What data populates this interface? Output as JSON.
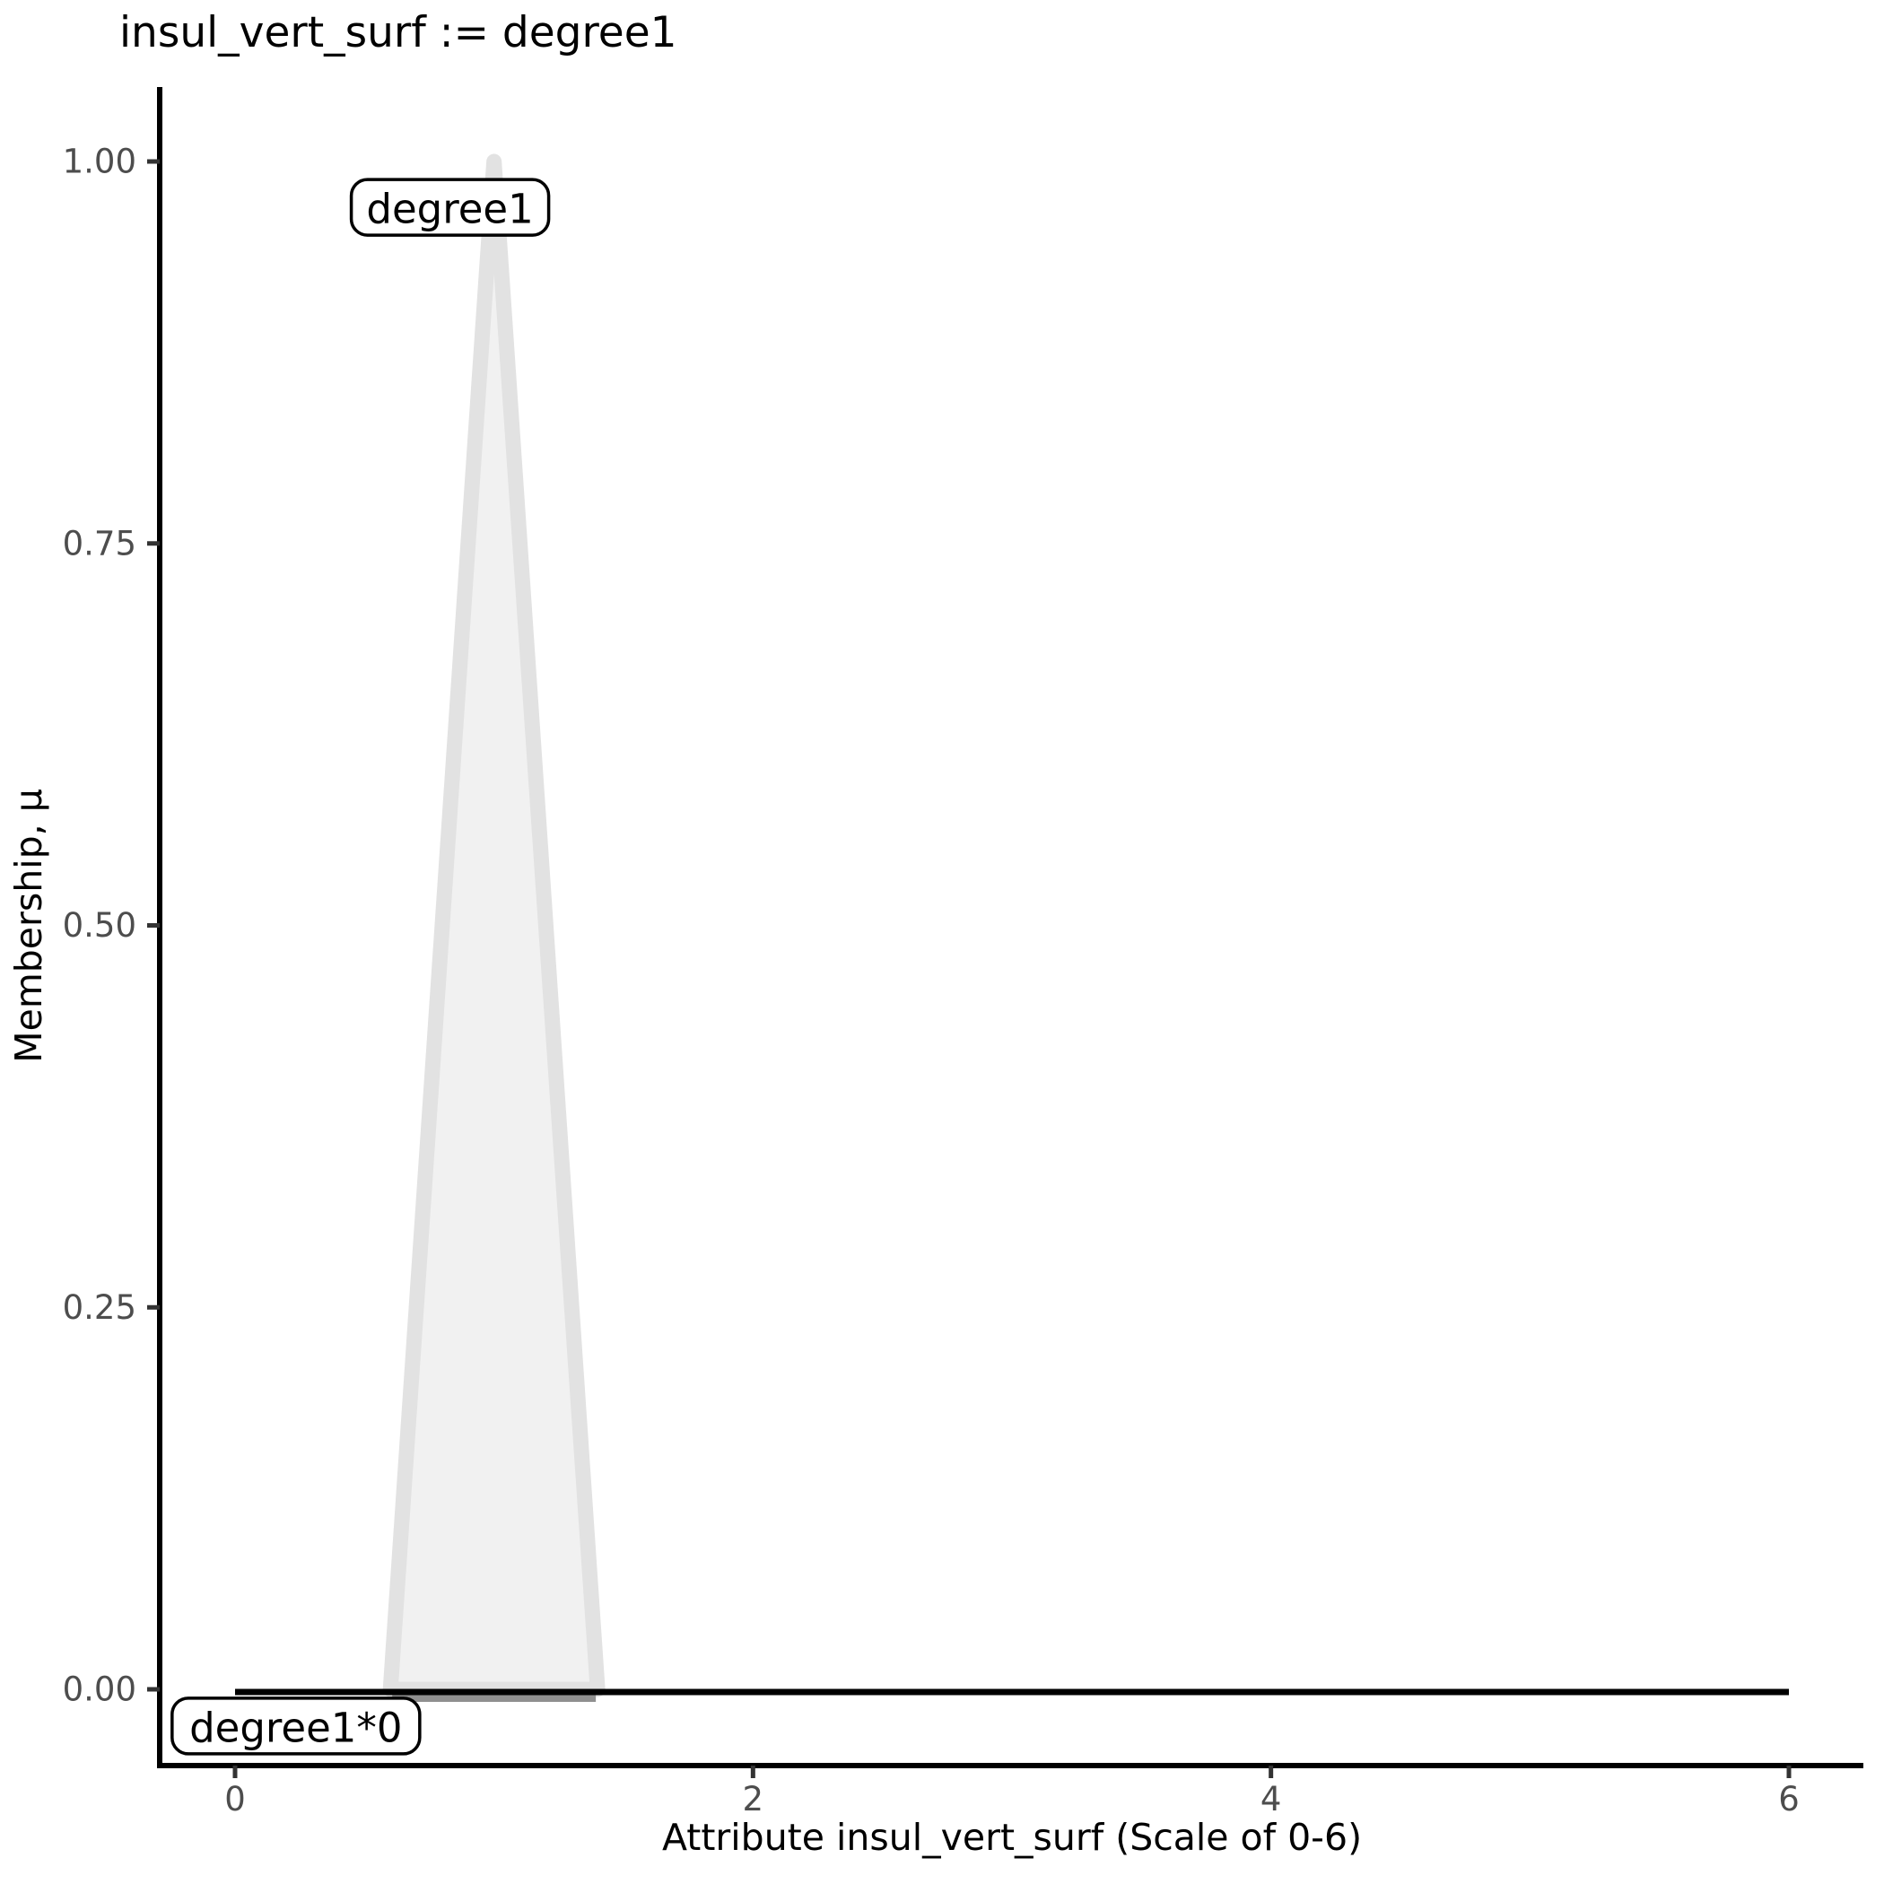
{
  "title": "insul_vert_surf := degree1",
  "axes": {
    "x": {
      "label": "Attribute insul_vert_surf (Scale of 0-6)",
      "ticks": [
        "0",
        "2",
        "4",
        "6"
      ],
      "tick_values": [
        0,
        2,
        4,
        6
      ],
      "range": [
        0,
        6
      ]
    },
    "y": {
      "label": "Membership, μ",
      "ticks": [
        "1.00",
        "0.75",
        "0.50",
        "0.25",
        "0.00"
      ],
      "tick_values": [
        1.0,
        0.75,
        0.5,
        0.25,
        0.0
      ],
      "range": [
        0,
        1
      ]
    }
  },
  "chart_data": {
    "type": "area",
    "title": "insul_vert_surf := degree1",
    "xlabel": "Attribute insul_vert_surf (Scale of 0-6)",
    "ylabel": "Membership, μ",
    "xlim": [
      0,
      6
    ],
    "ylim": [
      0,
      1
    ],
    "grid": false,
    "legend": false,
    "series": [
      {
        "name": "degree1",
        "kind": "area",
        "points": [
          [
            0.6,
            0
          ],
          [
            1.0,
            1.0
          ],
          [
            1.4,
            0
          ]
        ],
        "fill": "#F1F1F1",
        "stroke": "#E2E2E2"
      },
      {
        "name": "degree1*0",
        "kind": "line",
        "points": [
          [
            0,
            0
          ],
          [
            6,
            0
          ]
        ],
        "stroke": "#000000"
      }
    ],
    "annotations": [
      {
        "text": "degree1",
        "x": 0.83,
        "y": 0.97
      },
      {
        "text": "degree1*0",
        "x": 0.235,
        "y": -0.024
      }
    ]
  },
  "colors": {
    "background": "#FFFFFF",
    "axis_line": "#000000",
    "tick_mark": "#333333",
    "tick_label": "#4D4D4D",
    "text": "#000000",
    "area_fill": "#F1F1F1",
    "area_stroke": "#E2E2E2",
    "base_edge": "#8F8F8F",
    "zero_line": "#000000",
    "label_box_fill": "#FFFFFF",
    "label_box_border": "#000000"
  }
}
